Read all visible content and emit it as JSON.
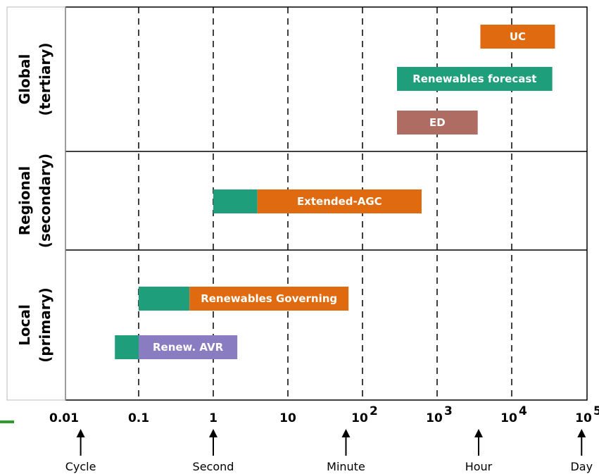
{
  "chart_data": {
    "type": "bar",
    "orientation": "horizontal-gantt",
    "x_scale": "log",
    "x_range": [
      0.01,
      100000
    ],
    "x_ticks": [
      {
        "value": 0.01,
        "base": "0.01",
        "exp": ""
      },
      {
        "value": 0.1,
        "base": "0.1",
        "exp": ""
      },
      {
        "value": 1,
        "base": "1",
        "exp": ""
      },
      {
        "value": 10,
        "base": "10",
        "exp": ""
      },
      {
        "value": 100,
        "base": "10",
        "exp": "2"
      },
      {
        "value": 1000,
        "base": "10",
        "exp": "3"
      },
      {
        "value": 10000,
        "base": "10",
        "exp": "4"
      },
      {
        "value": 100000,
        "base": "10",
        "exp": "5"
      }
    ],
    "gridlines": "dashed vertical at each decade",
    "bands": [
      {
        "line1": "Global",
        "line2": "(tertiary)"
      },
      {
        "line1": "Regional",
        "line2": "(secondary)"
      },
      {
        "line1": "Local",
        "line2": "(primary)"
      }
    ],
    "bars": [
      {
        "band": 0,
        "row": 0,
        "label": "UC",
        "segments": [
          {
            "start": 3800,
            "end": 38000,
            "color": "#e06a10"
          }
        ]
      },
      {
        "band": 0,
        "row": 1,
        "label": "Renewables forecast",
        "segments": [
          {
            "start": 290,
            "end": 35000,
            "color": "#1f9e7c"
          }
        ]
      },
      {
        "band": 0,
        "row": 2,
        "label": "ED",
        "segments": [
          {
            "start": 290,
            "end": 3500,
            "color": "#ae6c62"
          }
        ]
      },
      {
        "band": 1,
        "row": 0,
        "label": "Extended-AGC",
        "segments": [
          {
            "start": 1,
            "end": 3.9,
            "color": "#1f9e7c"
          },
          {
            "start": 3.9,
            "end": 620,
            "color": "#e06a10"
          }
        ]
      },
      {
        "band": 2,
        "row": 0,
        "label": "Renewables Governing",
        "segments": [
          {
            "start": 0.1,
            "end": 0.48,
            "color": "#1f9e7c"
          },
          {
            "start": 0.48,
            "end": 65,
            "color": "#e06a10"
          }
        ]
      },
      {
        "band": 2,
        "row": 1,
        "label": "Renew. AVR",
        "segments": [
          {
            "start": 0.048,
            "end": 0.1,
            "color": "#1f9e7c"
          },
          {
            "start": 0.1,
            "end": 2.1,
            "color": "#8a7cc0"
          }
        ]
      }
    ],
    "time_markers": [
      {
        "label": "Cycle",
        "value": 0.0167
      },
      {
        "label": "Second",
        "value": 1
      },
      {
        "label": "Minute",
        "value": 60
      },
      {
        "label": "Hour",
        "value": 3600
      },
      {
        "label": "Day",
        "value": 86400
      }
    ],
    "colors": {
      "orange": "#e06a10",
      "green": "#1f9e7c",
      "brown": "#ae6c62",
      "purple": "#8a7cc0",
      "side_mark": "#2e9b2e"
    }
  }
}
